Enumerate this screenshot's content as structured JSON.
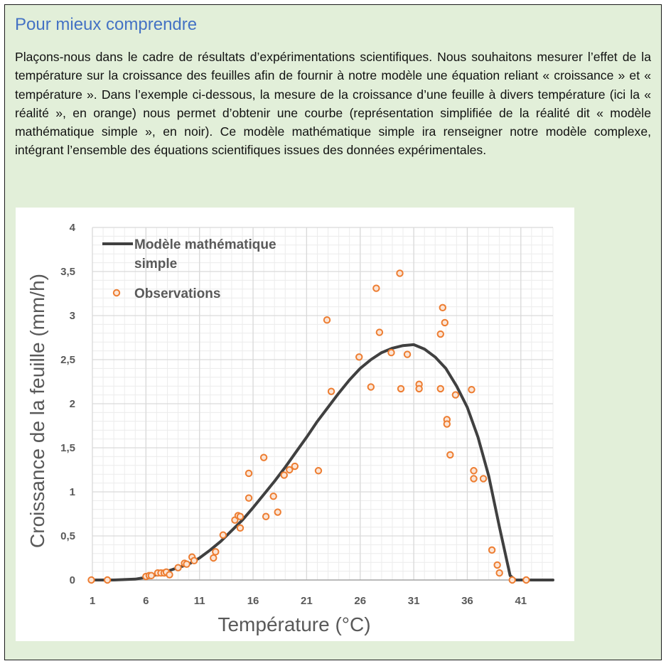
{
  "box": {
    "title": "Pour mieux comprendre",
    "paragraph": "Plaçons-nous dans le cadre de résultats d’expérimentations scientifiques. Nous souhaitons mesurer l’effet de la température sur la croissance des feuilles afin de fournir à notre modèle une équation reliant « croissance » et « température ». Dans l’exemple ci-dessous, la mesure de la croissance d’une feuille à divers température (ici la « réalité », en orange) nous permet d’obtenir une courbe (représentation simplifiée de la réalité dit « modèle mathématique simple », en noir). Ce modèle mathématique simple ira renseigner notre modèle complexe, intégrant l’ensemble des équations scientifiques issues des données expérimentales."
  },
  "colors": {
    "box_background": "#e2efd9",
    "title": "#4472c4",
    "model_line": "#404040",
    "observation_stroke": "#ed7d31",
    "observation_fill": "#fbe5d6",
    "grid": "#d9d9d9"
  },
  "chart_data": {
    "type": "scatter",
    "xlabel": "Température (°C)",
    "ylabel": "Croissance de la feuille (mm/h)",
    "xlim": [
      1,
      44
    ],
    "ylim": [
      0,
      4
    ],
    "x_ticks": [
      1,
      6,
      11,
      16,
      21,
      26,
      31,
      36,
      41
    ],
    "x_tick_labels": [
      "1",
      "6",
      "11",
      "16",
      "21",
      "26",
      "31",
      "36",
      "41"
    ],
    "y_ticks": [
      0,
      0.5,
      1,
      1.5,
      2,
      2.5,
      3,
      3.5,
      4
    ],
    "y_tick_labels": [
      "0",
      "0,5",
      "1",
      "1,5",
      "2",
      "2,5",
      "3",
      "3,5",
      "4"
    ],
    "grid": true,
    "minor_grid_x_step": 1,
    "minor_grid_y_step": 0.1,
    "legend_position": "top-left",
    "series": [
      {
        "name": "Modèle mathématique simple",
        "type": "line",
        "points": [
          [
            1,
            0
          ],
          [
            3,
            0
          ],
          [
            4,
            0.005
          ],
          [
            5,
            0.01
          ],
          [
            6,
            0.03
          ],
          [
            7,
            0.06
          ],
          [
            8,
            0.1
          ],
          [
            9,
            0.14
          ],
          [
            10,
            0.18
          ],
          [
            11,
            0.25
          ],
          [
            12,
            0.34
          ],
          [
            13,
            0.44
          ],
          [
            14,
            0.56
          ],
          [
            15,
            0.68
          ],
          [
            16,
            0.82
          ],
          [
            17,
            0.97
          ],
          [
            18,
            1.12
          ],
          [
            19,
            1.28
          ],
          [
            20,
            1.45
          ],
          [
            21,
            1.62
          ],
          [
            22,
            1.8
          ],
          [
            23,
            1.96
          ],
          [
            24,
            2.12
          ],
          [
            25,
            2.27
          ],
          [
            26,
            2.4
          ],
          [
            27,
            2.5
          ],
          [
            28,
            2.58
          ],
          [
            29,
            2.63
          ],
          [
            30,
            2.66
          ],
          [
            31,
            2.67
          ],
          [
            32,
            2.62
          ],
          [
            33,
            2.53
          ],
          [
            34,
            2.4
          ],
          [
            35,
            2.2
          ],
          [
            36,
            1.96
          ],
          [
            37,
            1.62
          ],
          [
            38,
            1.18
          ],
          [
            39,
            0.6
          ],
          [
            40,
            0.05
          ],
          [
            40.5,
            0
          ],
          [
            44,
            0
          ]
        ]
      },
      {
        "name": "Observations",
        "type": "scatter",
        "points": [
          [
            0.9,
            0
          ],
          [
            2.4,
            0
          ],
          [
            6,
            0.04
          ],
          [
            6.3,
            0.05
          ],
          [
            6.5,
            0.05
          ],
          [
            7.1,
            0.08
          ],
          [
            7.4,
            0.08
          ],
          [
            7.7,
            0.08
          ],
          [
            7.9,
            0.09
          ],
          [
            8.2,
            0.06
          ],
          [
            9,
            0.14
          ],
          [
            9.6,
            0.19
          ],
          [
            9.8,
            0.18
          ],
          [
            10.3,
            0.26
          ],
          [
            10.5,
            0.22
          ],
          [
            12.3,
            0.25
          ],
          [
            12.5,
            0.32
          ],
          [
            13.2,
            0.51
          ],
          [
            14.3,
            0.68
          ],
          [
            14.6,
            0.73
          ],
          [
            14.8,
            0.72
          ],
          [
            14.8,
            0.59
          ],
          [
            15.6,
            0.93
          ],
          [
            15.6,
            1.21
          ],
          [
            17,
            1.39
          ],
          [
            17.2,
            0.72
          ],
          [
            17.9,
            0.95
          ],
          [
            18.3,
            0.77
          ],
          [
            18.9,
            1.19
          ],
          [
            19.4,
            1.25
          ],
          [
            19.9,
            1.29
          ],
          [
            22.1,
            1.24
          ],
          [
            22.9,
            2.95
          ],
          [
            23.3,
            2.14
          ],
          [
            25.9,
            2.53
          ],
          [
            27,
            2.19
          ],
          [
            27.5,
            3.31
          ],
          [
            27.8,
            2.81
          ],
          [
            28.9,
            2.58
          ],
          [
            29.7,
            3.48
          ],
          [
            29.8,
            2.17
          ],
          [
            30.4,
            2.56
          ],
          [
            31.5,
            2.22
          ],
          [
            31.5,
            2.17
          ],
          [
            33.5,
            2.79
          ],
          [
            33.5,
            2.17
          ],
          [
            33.7,
            3.09
          ],
          [
            33.9,
            2.92
          ],
          [
            34.1,
            1.82
          ],
          [
            34.1,
            1.77
          ],
          [
            34.4,
            1.42
          ],
          [
            34.9,
            2.1
          ],
          [
            36.4,
            2.16
          ],
          [
            36.6,
            1.24
          ],
          [
            36.6,
            1.15
          ],
          [
            37.5,
            1.15
          ],
          [
            38.3,
            0.34
          ],
          [
            38.8,
            0.17
          ],
          [
            39,
            0.08
          ],
          [
            40.2,
            0
          ],
          [
            41.5,
            0
          ]
        ]
      }
    ]
  }
}
